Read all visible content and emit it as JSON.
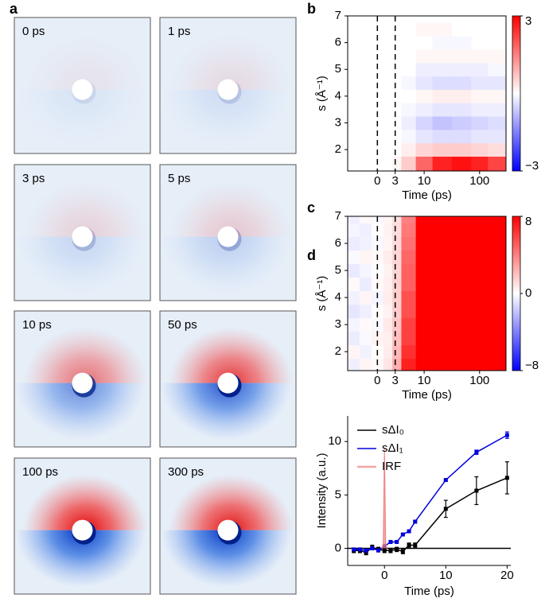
{
  "panel_labels": [
    "a",
    "b",
    "c",
    "d"
  ],
  "diffraction_images": [
    "0 ps",
    "1 ps",
    "3 ps",
    "5 ps",
    "10 ps",
    "50 ps",
    "100 ps",
    "300 ps"
  ],
  "chart_data": [
    {
      "type": "heatmap",
      "x_label": "Time (ps)",
      "y_label": "s (Å⁻¹)",
      "x": [
        -4,
        -2,
        0,
        2,
        3,
        5,
        10,
        20,
        50,
        100,
        200
      ],
      "y": [
        1.5,
        2,
        2.5,
        3,
        3.5,
        4,
        4.5,
        5,
        5.5,
        6,
        6.5,
        7
      ],
      "z": [
        [
          0,
          0,
          0,
          0,
          0.1,
          0.6,
          1.8,
          2.6,
          2.8,
          2.6,
          2.2
        ],
        [
          0,
          0,
          0,
          0,
          0,
          0.2,
          0.5,
          0.6,
          0.6,
          0.5,
          0.4
        ],
        [
          0,
          0,
          0,
          0,
          0,
          -0.1,
          -0.3,
          -0.4,
          -0.4,
          -0.3,
          -0.3
        ],
        [
          0,
          0,
          0,
          0,
          0,
          -0.2,
          -0.5,
          -0.7,
          -0.6,
          -0.5,
          -0.4
        ],
        [
          0,
          0,
          0,
          0,
          0,
          -0.1,
          -0.2,
          -0.3,
          -0.3,
          -0.2,
          -0.2
        ],
        [
          0,
          0,
          0,
          0,
          0,
          0,
          0.1,
          0.2,
          0.2,
          0.1,
          0.1
        ],
        [
          0,
          0,
          0,
          0,
          0,
          -0.1,
          -0.3,
          -0.4,
          -0.4,
          -0.3,
          -0.3
        ],
        [
          0,
          0,
          0,
          0,
          0,
          0,
          -0.2,
          -0.2,
          -0.2,
          -0.2,
          -0.1
        ],
        [
          0,
          0,
          0,
          0,
          0,
          0,
          0.1,
          0.1,
          0.1,
          0.1,
          0.1
        ],
        [
          0,
          0,
          0,
          0,
          0,
          0,
          0,
          -0.1,
          -0.1,
          0,
          0
        ],
        [
          0,
          0,
          0,
          0,
          0,
          0,
          0.1,
          0.1,
          0,
          0,
          0
        ],
        [
          0,
          0,
          0,
          0,
          0,
          0,
          0,
          0,
          0,
          0,
          0
        ]
      ],
      "xlim": [
        -5,
        300
      ],
      "x_scale": "linear-log",
      "x_break": 3,
      "xticks": [
        0,
        3,
        10,
        100
      ],
      "ylim": [
        1.2,
        7
      ],
      "yticks": [
        2,
        3,
        4,
        5,
        6,
        7
      ],
      "vlines": [
        0,
        3
      ],
      "zlim": [
        -3,
        3
      ],
      "zticks": [
        3,
        {
          "value": -3,
          "label": "−3"
        }
      ],
      "colormap": [
        "#0000ff",
        "#ffffff",
        "#ff0000"
      ]
    },
    {
      "type": "heatmap",
      "x_label": "Time (ps)",
      "y_label": "s (Å⁻¹)",
      "x": [
        -4,
        -2,
        0,
        2,
        3,
        5,
        10,
        20,
        50,
        100,
        200
      ],
      "y": [
        1.5,
        2,
        2.5,
        3,
        3.5,
        4,
        4.5,
        5,
        5.5,
        6,
        6.5,
        7
      ],
      "z": [
        [
          -0.5,
          0.3,
          0.2,
          0.8,
          2.5,
          7,
          12,
          12,
          12,
          12,
          12
        ],
        [
          0.3,
          -0.4,
          0.1,
          0.6,
          2.2,
          6.5,
          12,
          12,
          12,
          12,
          12
        ],
        [
          -0.6,
          -0.2,
          0.4,
          0.5,
          2,
          6,
          12,
          12,
          12,
          12,
          12
        ],
        [
          -0.3,
          0.2,
          -0.2,
          0.7,
          1.8,
          6,
          12,
          12,
          12,
          12,
          12
        ],
        [
          -0.8,
          -0.5,
          0.1,
          0.4,
          1.6,
          5.5,
          11,
          12,
          12,
          12,
          12
        ],
        [
          -0.4,
          0.3,
          -0.3,
          0.6,
          1.5,
          5.5,
          11,
          12,
          12,
          12,
          12
        ],
        [
          0.2,
          -0.6,
          0.2,
          0.5,
          1.4,
          5,
          10,
          12,
          12,
          12,
          12
        ],
        [
          -0.7,
          -0.3,
          -0.1,
          0.4,
          1.3,
          5,
          10,
          12,
          12,
          12,
          12
        ],
        [
          -0.2,
          0.3,
          0.2,
          0.6,
          1.3,
          4.8,
          10,
          12,
          12,
          12,
          12
        ],
        [
          -0.6,
          -0.4,
          -0.2,
          0.3,
          1.2,
          4.5,
          9,
          12,
          12,
          12,
          12
        ],
        [
          -0.3,
          -0.5,
          0.1,
          0.4,
          1.1,
          4.2,
          9,
          12,
          12,
          12,
          12
        ],
        [
          -0.5,
          0.2,
          -0.2,
          0.3,
          1,
          4,
          9,
          12,
          12,
          12,
          12
        ]
      ],
      "xlim": [
        -5,
        300
      ],
      "x_scale": "linear-log",
      "x_break": 3,
      "xticks": [
        0,
        3,
        10,
        100
      ],
      "ylim": [
        1.3,
        7
      ],
      "yticks": [
        2,
        3,
        4,
        5,
        6,
        7
      ],
      "vlines": [
        0,
        3
      ],
      "zlim": [
        -8,
        8
      ],
      "zticks": [
        8,
        0,
        {
          "value": -8,
          "label": "−8"
        }
      ],
      "colormap": [
        "#0000ff",
        "#ffffff",
        "#ff0000"
      ]
    },
    {
      "type": "line",
      "x_label": "Time (ps)",
      "y_label": "Intensity (a.u.)",
      "series": [
        {
          "name": "sΔI₀",
          "color": "#000000",
          "x": [
            -5,
            -4,
            -3,
            -2,
            -1,
            0,
            1,
            2,
            3,
            4,
            5,
            10,
            15,
            20
          ],
          "values": [
            -0.2,
            -0.2,
            -0.4,
            0.1,
            -0.1,
            -0.2,
            -0.2,
            -0.1,
            -0.3,
            0.3,
            0.3,
            3.7,
            5.4,
            6.6
          ],
          "errors": [
            0.2,
            0.2,
            0.2,
            0.2,
            0.2,
            0.2,
            0.2,
            0.2,
            0.2,
            0.2,
            0.2,
            0.8,
            1.3,
            1.5
          ]
        },
        {
          "name": "sΔI₁",
          "color": "#0000dd",
          "x": [
            -5,
            -4,
            -3,
            -2,
            -1,
            0,
            1,
            2,
            3,
            4,
            5,
            10,
            15,
            20
          ],
          "values": [
            -0.1,
            -0.1,
            -0.2,
            0,
            -0.2,
            0.2,
            0.6,
            0.6,
            1.3,
            1.6,
            2.5,
            6.4,
            9.0,
            10.6
          ],
          "errors": [
            0.1,
            0.1,
            0.1,
            0.1,
            0.1,
            0.1,
            0.1,
            0.1,
            0.1,
            0.1,
            0.1,
            0.1,
            0.2,
            0.3
          ]
        },
        {
          "name": "IRF",
          "color": "#f08080",
          "fill": true,
          "x": [
            -0.4,
            -0.2,
            0,
            0.2,
            0.4
          ],
          "values": [
            0,
            0.5,
            9.4,
            0.5,
            0
          ]
        }
      ],
      "hline": 0,
      "xlim": [
        -6,
        20.6
      ],
      "xticks": [
        0,
        10,
        20
      ],
      "ylim": [
        -1.6,
        12.4
      ],
      "yticks": [
        0,
        5,
        10
      ],
      "legend": "upper left"
    }
  ]
}
